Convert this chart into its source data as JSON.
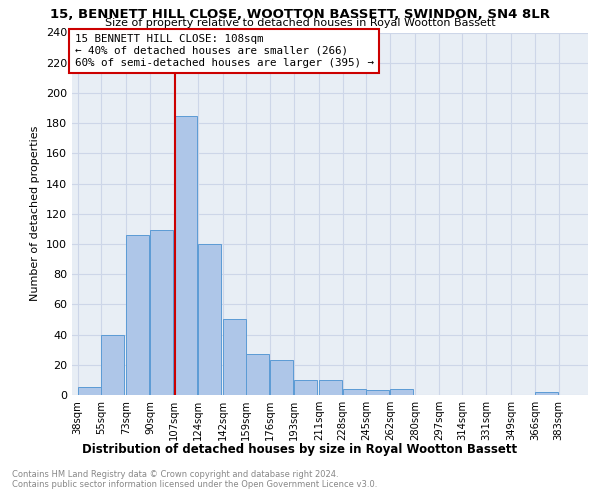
{
  "title": "15, BENNETT HILL CLOSE, WOOTTON BASSETT, SWINDON, SN4 8LR",
  "subtitle": "Size of property relative to detached houses in Royal Wootton Bassett",
  "xlabel": "Distribution of detached houses by size in Royal Wootton Bassett",
  "ylabel": "Number of detached properties",
  "footnote1": "Contains HM Land Registry data © Crown copyright and database right 2024.",
  "footnote2": "Contains public sector information licensed under the Open Government Licence v3.0.",
  "bar_labels": [
    "38sqm",
    "55sqm",
    "73sqm",
    "90sqm",
    "107sqm",
    "124sqm",
    "142sqm",
    "159sqm",
    "176sqm",
    "193sqm",
    "211sqm",
    "228sqm",
    "245sqm",
    "262sqm",
    "280sqm",
    "297sqm",
    "314sqm",
    "331sqm",
    "349sqm",
    "366sqm",
    "383sqm"
  ],
  "bar_values": [
    5,
    40,
    106,
    109,
    185,
    100,
    50,
    27,
    23,
    10,
    10,
    4,
    3,
    4,
    0,
    0,
    0,
    0,
    0,
    2,
    0
  ],
  "bar_color": "#aec6e8",
  "bar_edgecolor": "#5b9bd5",
  "property_line_label": "15 BENNETT HILL CLOSE: 108sqm",
  "annotation_line1": "← 40% of detached houses are smaller (266)",
  "annotation_line2": "60% of semi-detached houses are larger (395) →",
  "annotation_box_edgecolor": "#cc0000",
  "annotation_box_facecolor": "#ffffff",
  "line_color": "#cc0000",
  "ylim": [
    0,
    240
  ],
  "yticks": [
    0,
    20,
    40,
    60,
    80,
    100,
    120,
    140,
    160,
    180,
    200,
    220,
    240
  ],
  "grid_color": "#cdd6e8",
  "background_color": "#e8eef5",
  "bin_width": 17,
  "property_sqm": 108
}
